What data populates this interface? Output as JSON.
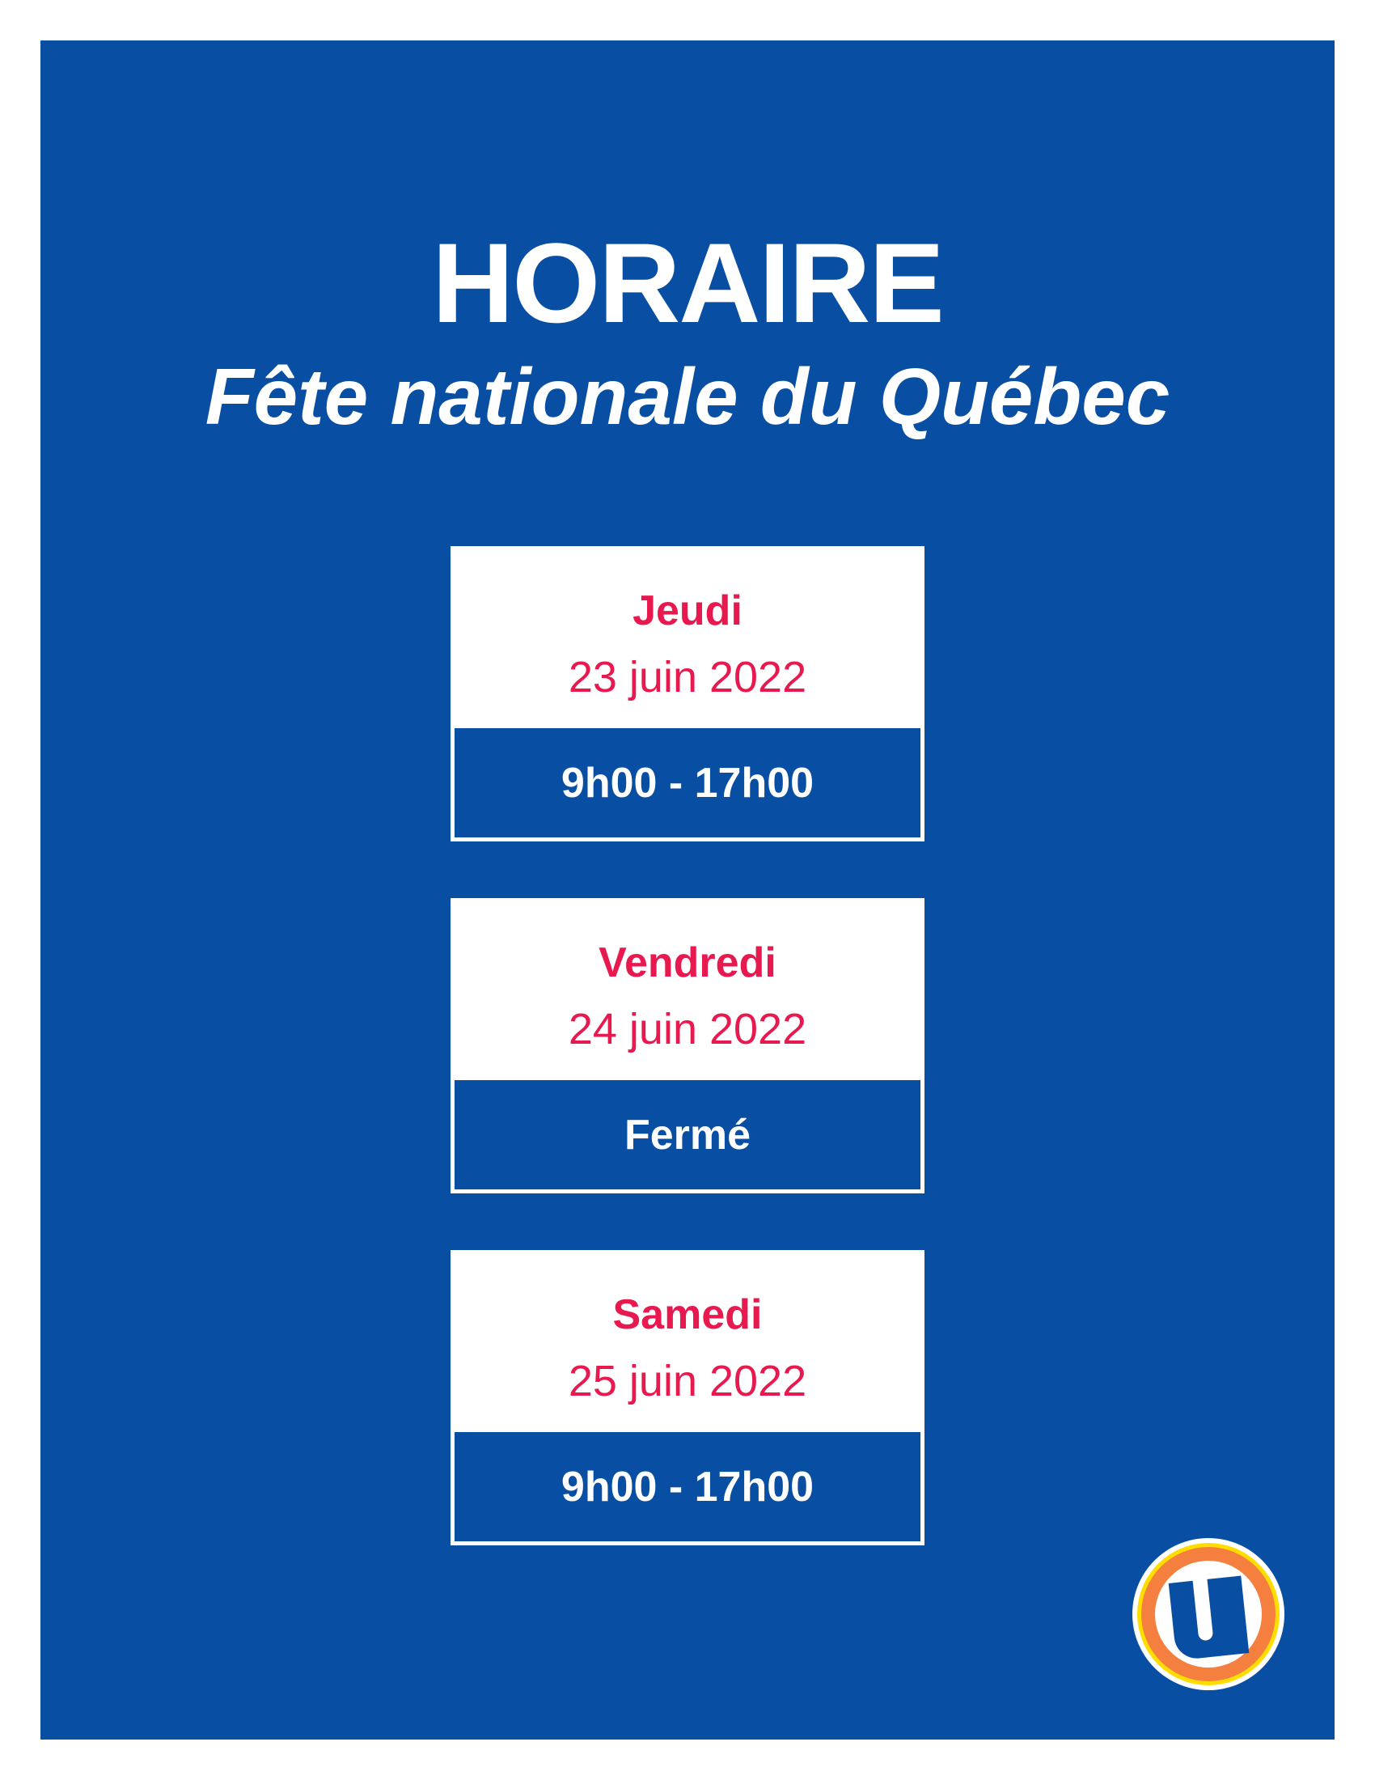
{
  "header": {
    "title": "HORAIRE",
    "subtitle": "Fête nationale du Québec"
  },
  "schedule": [
    {
      "day": "Jeudi",
      "date": "23 juin 2022",
      "hours": "9h00 - 17h00"
    },
    {
      "day": "Vendredi",
      "date": "24 juin 2022",
      "hours": "Fermé"
    },
    {
      "day": "Samedi",
      "date": "25 juin 2022",
      "hours": "9h00 - 17h00"
    }
  ],
  "logo": {
    "name": "u-logo-icon",
    "letter": "U"
  },
  "colors": {
    "background": "#084fa3",
    "accent": "#e8194f",
    "logo_orange": "#f47f3e",
    "logo_yellow": "#ffdd00"
  }
}
